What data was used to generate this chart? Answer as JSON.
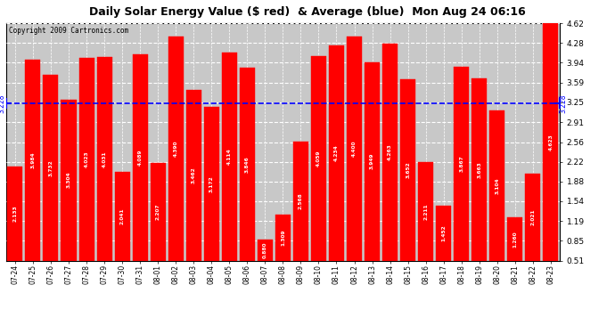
{
  "title": "Daily Solar Energy Value ($ red)  & Average (blue)  Mon Aug 24 06:16",
  "copyright": "Copyright 2009 Cartronics.com",
  "categories": [
    "07-24",
    "07-25",
    "07-26",
    "07-27",
    "07-28",
    "07-29",
    "07-30",
    "07-31",
    "08-01",
    "08-02",
    "08-03",
    "08-04",
    "08-05",
    "08-06",
    "08-07",
    "08-08",
    "08-09",
    "08-10",
    "08-11",
    "08-12",
    "08-13",
    "08-14",
    "08-15",
    "08-16",
    "08-17",
    "08-18",
    "08-19",
    "08-20",
    "08-21",
    "08-22",
    "08-23"
  ],
  "values": [
    2.133,
    3.984,
    3.732,
    3.304,
    4.023,
    4.031,
    2.041,
    4.089,
    2.207,
    4.39,
    3.462,
    3.172,
    4.114,
    3.846,
    0.88,
    1.309,
    2.568,
    4.059,
    4.234,
    4.4,
    3.949,
    4.263,
    3.652,
    2.211,
    1.452,
    3.867,
    3.663,
    3.104,
    1.26,
    2.021,
    4.623
  ],
  "average": 3.228,
  "bar_color": "#ff0000",
  "avg_color": "#0000ff",
  "bg_color": "#ffffff",
  "plot_bg_color": "#c8c8c8",
  "grid_color": "#ffffff",
  "yticks": [
    0.51,
    0.85,
    1.19,
    1.54,
    1.88,
    2.22,
    2.56,
    2.91,
    3.25,
    3.59,
    3.94,
    4.28,
    4.62
  ],
  "ylim": [
    0.51,
    4.62
  ],
  "ymin": 0.51,
  "avg_label": "3.228"
}
